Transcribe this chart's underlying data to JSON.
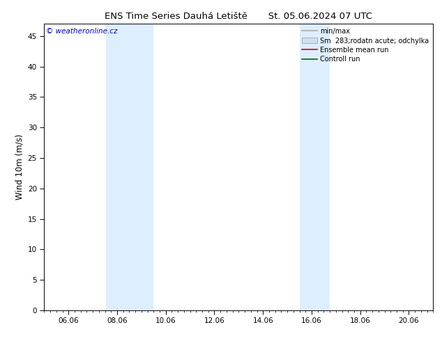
{
  "title": "ENS Time Series Dauhá Letiště       St. 05.06.2024 07 UTC",
  "ylabel": "Wind 10m (m/s)",
  "ylim": [
    0,
    47
  ],
  "yticks": [
    0,
    5,
    10,
    15,
    20,
    25,
    30,
    35,
    40,
    45
  ],
  "xtick_labels": [
    "06.06",
    "08.06",
    "10.06",
    "12.06",
    "14.06",
    "16.06",
    "18.06",
    "20.06"
  ],
  "xtick_positions": [
    1,
    3,
    5,
    7,
    9,
    11,
    13,
    15
  ],
  "xlim": [
    0.0,
    16.0
  ],
  "shaded_bands": [
    {
      "x_start": 2.54,
      "x_end": 4.5
    },
    {
      "x_start": 10.5,
      "x_end": 11.75
    }
  ],
  "background_color": "#ffffff",
  "band_color": "#ddeeff",
  "watermark_text": "© weatheronline.cz",
  "watermark_color": "#0000cc",
  "legend_entries": [
    {
      "label": "min/max",
      "color": "#aaaaaa",
      "lw": 1.2,
      "type": "line"
    },
    {
      "label": "Sm  283;rodatn acute; odchylka",
      "color": "#cce0f0",
      "type": "patch"
    },
    {
      "label": "Ensemble mean run",
      "color": "#dd0000",
      "lw": 1.2,
      "type": "line"
    },
    {
      "label": "Controll run",
      "color": "#006600",
      "lw": 1.2,
      "type": "line"
    }
  ],
  "title_fontsize": 9.5,
  "tick_fontsize": 7.5,
  "ylabel_fontsize": 8.5,
  "legend_fontsize": 7.0,
  "watermark_fontsize": 7.5
}
